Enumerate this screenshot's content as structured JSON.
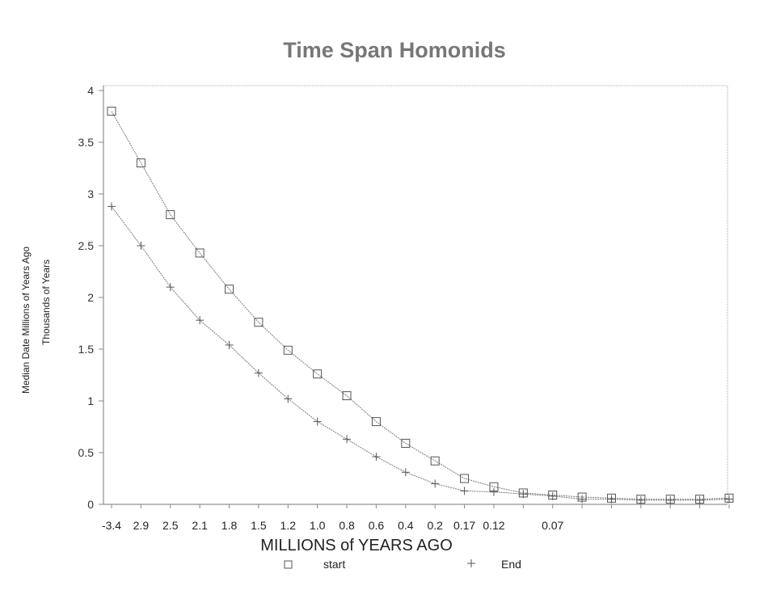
{
  "chart_data": {
    "type": "line",
    "title": "Time Span Homonids",
    "xlabel": "MILLIONS of YEARS AGO",
    "ylabel": "Median Date  Millions of Years Ago",
    "ylabel2": "Thousands of Years",
    "ylim": [
      0,
      4
    ],
    "y_ticks": [
      "0",
      "0.5",
      "1",
      "1.5",
      "2",
      "2.5",
      "3",
      "3.5",
      "4"
    ],
    "x_tick_labels": [
      "-3.4",
      "2.9",
      "2.5",
      "2.1",
      "1.8",
      "1.5",
      "1.2",
      "1.0",
      "0.8",
      "0.6",
      "0.4",
      "0.2",
      "0.17",
      "0.12",
      "",
      "0.07",
      "",
      "",
      "",
      "",
      "",
      ""
    ],
    "legend_position": "bottom",
    "grid": false,
    "series": [
      {
        "name": "start",
        "marker": "square",
        "values": [
          3.8,
          3.3,
          2.8,
          2.43,
          2.08,
          1.76,
          1.49,
          1.26,
          1.05,
          0.8,
          0.59,
          0.42,
          0.25,
          0.17,
          0.11,
          0.09,
          0.07,
          0.06,
          0.05,
          0.05,
          0.05,
          0.06
        ]
      },
      {
        "name": "End",
        "marker": "plus",
        "values": [
          2.88,
          2.5,
          2.1,
          1.78,
          1.54,
          1.27,
          1.02,
          0.8,
          0.63,
          0.46,
          0.31,
          0.2,
          0.13,
          0.12,
          0.1,
          0.08,
          0.05,
          0.05,
          0.04,
          0.04,
          0.04,
          0.05
        ]
      }
    ],
    "colors": {
      "line": "#7a7a7a",
      "marker": "#555555",
      "axis": "#888888",
      "title": "#777777",
      "text": "#222222"
    }
  }
}
